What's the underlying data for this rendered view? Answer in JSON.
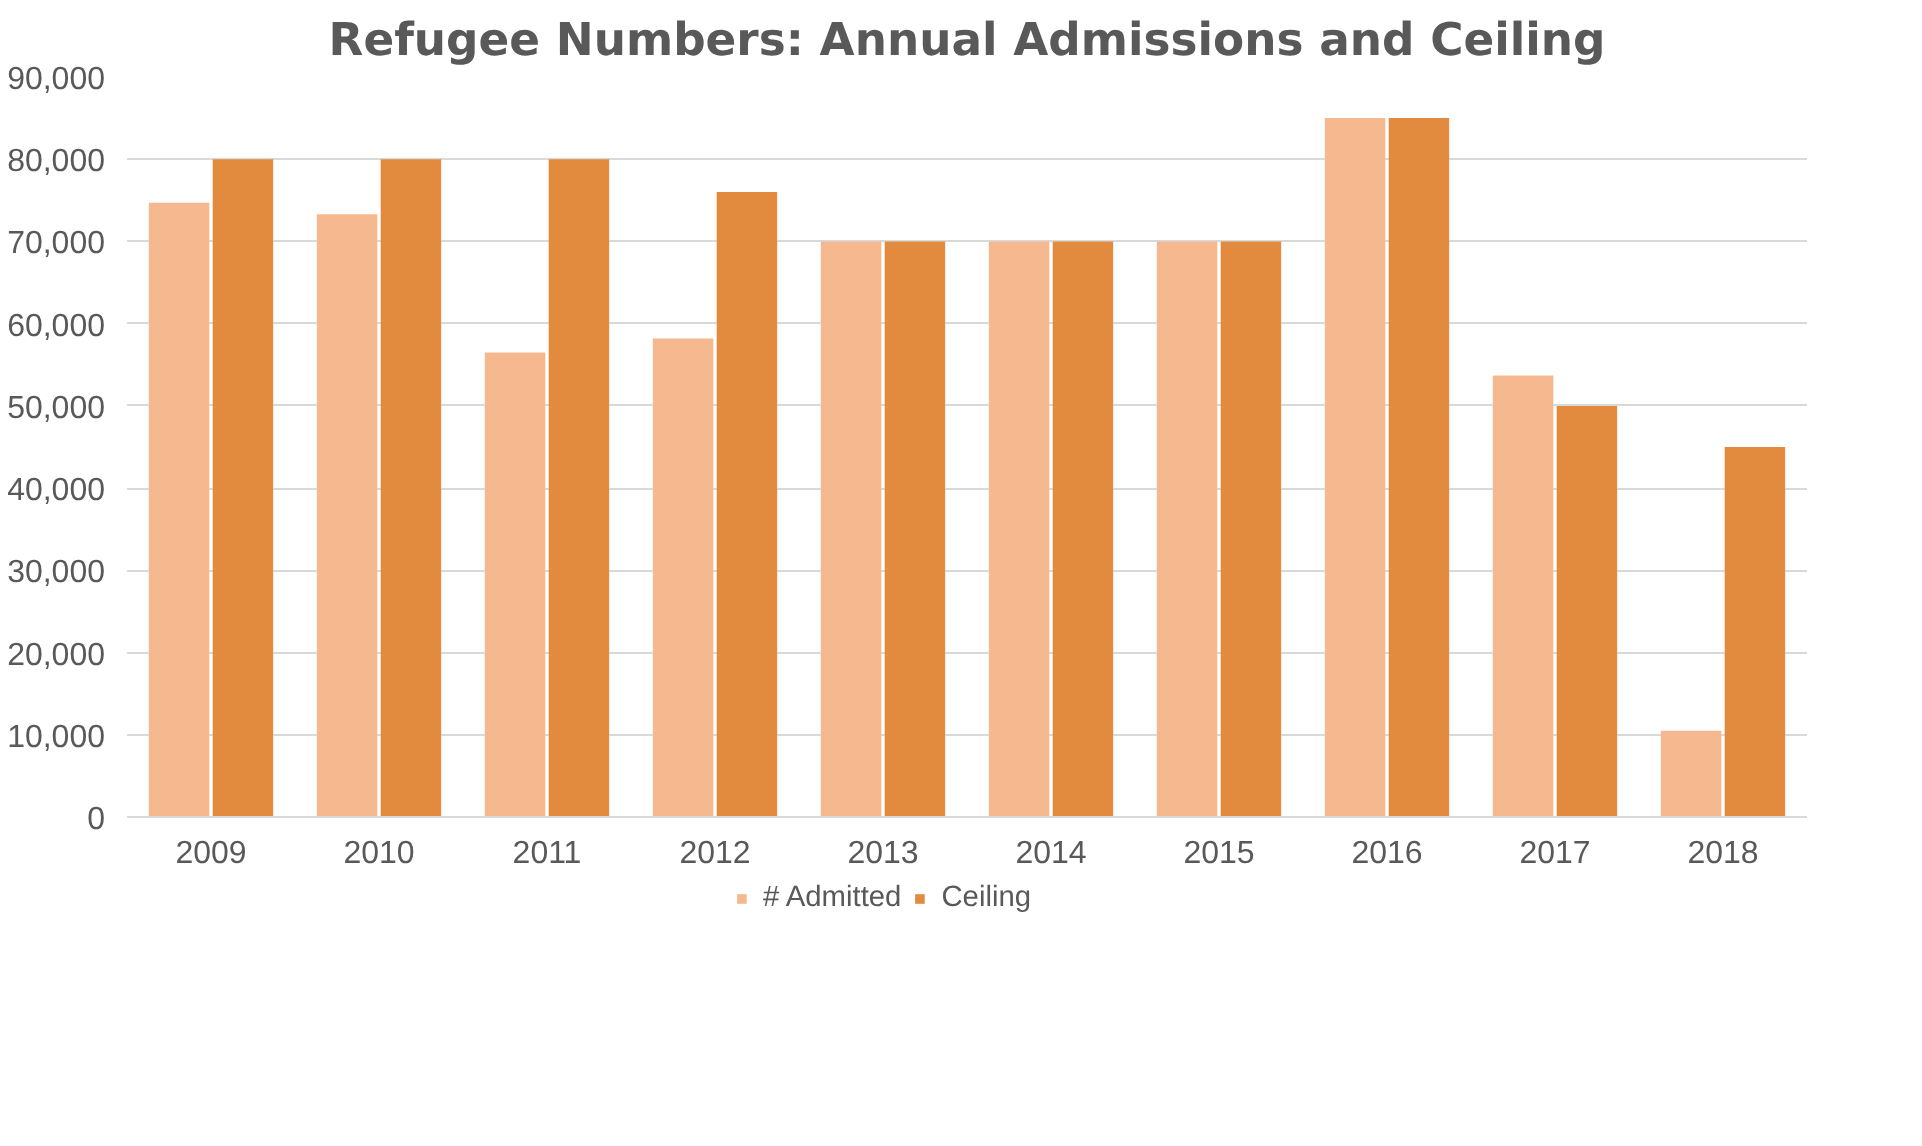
{
  "chart_data": {
    "type": "bar",
    "title": "Refugee Numbers: Annual Admissions and Ceiling",
    "categories": [
      "2009",
      "2010",
      "2011",
      "2012",
      "2013",
      "2014",
      "2015",
      "2016",
      "2017",
      "2018"
    ],
    "series": [
      {
        "name": "# Admitted",
        "color": "#f6b98f",
        "values": [
          74700,
          73300,
          56500,
          58200,
          70000,
          70000,
          70000,
          85000,
          53700,
          10500
        ]
      },
      {
        "name": "Ceiling",
        "color": "#e28a3e",
        "values": [
          80000,
          80000,
          80000,
          76000,
          70000,
          70000,
          70000,
          85000,
          50000,
          45000
        ]
      }
    ],
    "ylim": [
      0,
      90000
    ],
    "yticks": [
      {
        "value": 0,
        "label": "0"
      },
      {
        "value": 10000,
        "label": "10,000"
      },
      {
        "value": 20000,
        "label": "20,000"
      },
      {
        "value": 30000,
        "label": "30,000"
      },
      {
        "value": 40000,
        "label": "40,000"
      },
      {
        "value": 50000,
        "label": "50,000"
      },
      {
        "value": 60000,
        "label": "60,000"
      },
      {
        "value": 70000,
        "label": "70,000"
      },
      {
        "value": 80000,
        "label": "80,000"
      },
      {
        "value": 90000,
        "label": "90,000"
      }
    ],
    "grid": "y",
    "legend": "bottom"
  }
}
